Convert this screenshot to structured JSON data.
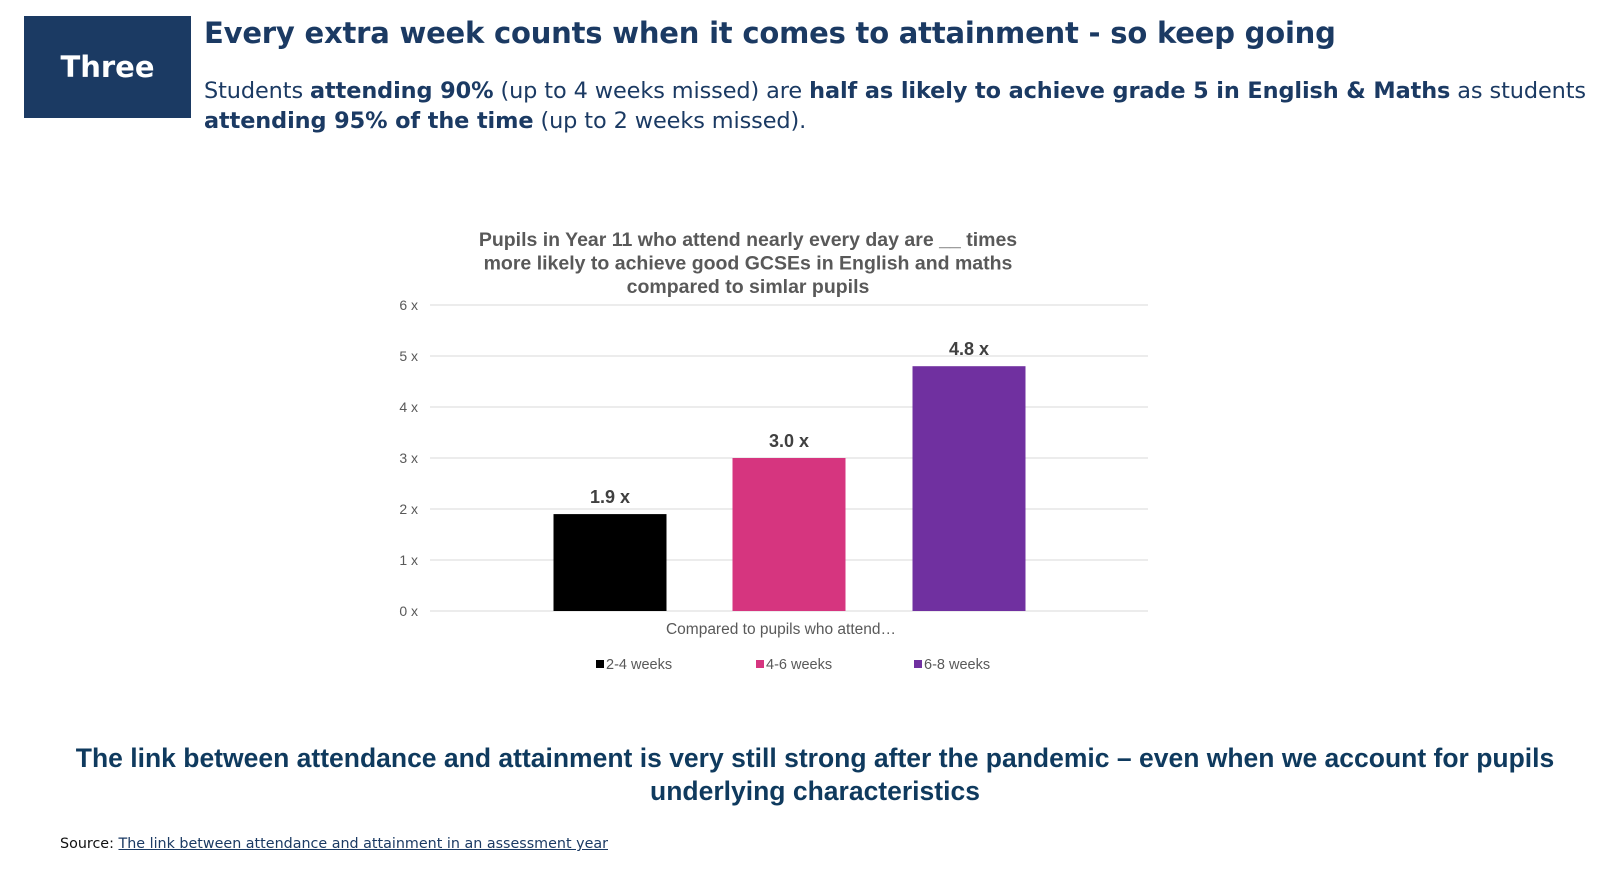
{
  "slide": {
    "badge": "Three",
    "headline": "Every extra week counts when it comes to attainment - so keep going",
    "lead": {
      "p1": "Students ",
      "b1": "attending 90%",
      "p2": " (up to 4 weeks missed) are ",
      "b2": "half as likely to achieve grade 5 in English & Maths",
      "p3": " as students ",
      "b3": "attending 95% of the time",
      "p4": " (up to 2 weeks missed)."
    },
    "conclusion": "The link between attendance and attainment is very still strong after the pandemic – even when we account for pupils underlying characteristics",
    "source_label": "Source:",
    "source_link": "The link between attendance and attainment in an assessment year"
  },
  "colors": {
    "navy": "#1b3a63",
    "bar_2_4": "#000000",
    "bar_4_6": "#d6357f",
    "bar_6_8": "#7030a0",
    "grid": "#d9d9d9",
    "axis_text": "#595959"
  },
  "chart_data": {
    "type": "bar",
    "title": [
      "Pupils  in Year 11  who attend nearly every day are __ times",
      "more likely to achieve good GCSEs in English and maths",
      "compared to simlar pupils"
    ],
    "xlabel": "Compared to pupils who attend…",
    "ylabel": "",
    "ylim": [
      0,
      6
    ],
    "yticks": [
      0,
      1,
      2,
      3,
      4,
      5,
      6
    ],
    "ytick_labels": [
      "0 x",
      "1 x",
      "2 x",
      "3 x",
      "4 x",
      "5 x",
      "6 x"
    ],
    "grid": true,
    "legend_position": "bottom",
    "series": [
      {
        "name": "2-4 weeks",
        "values": [
          1.9
        ],
        "label": "1.9 x",
        "color": "#000000"
      },
      {
        "name": "4-6 weeks",
        "values": [
          3.0
        ],
        "label": "3.0 x",
        "color": "#d6357f"
      },
      {
        "name": "6-8 weeks",
        "values": [
          4.8
        ],
        "label": "4.8 x",
        "color": "#7030a0"
      }
    ]
  }
}
